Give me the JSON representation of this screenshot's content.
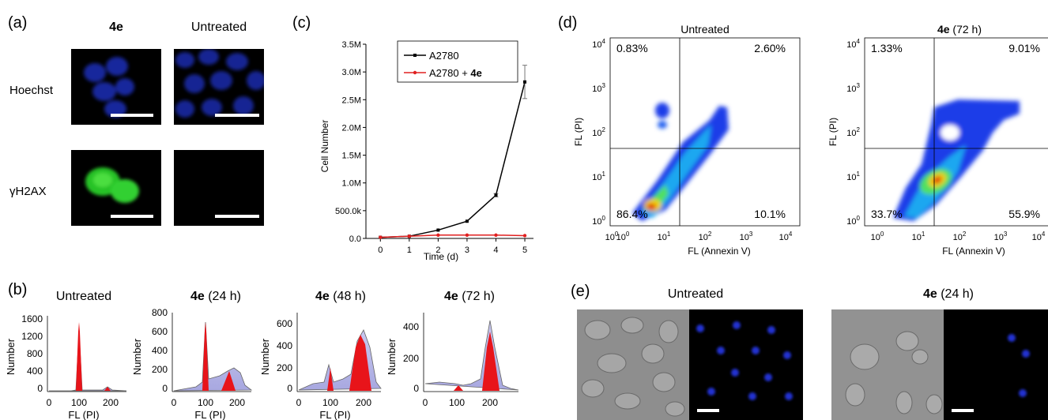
{
  "panels": {
    "a": {
      "label": "(a)",
      "col_headers": [
        "4e",
        "Untreated"
      ],
      "row_labels": [
        "Hoechst",
        "γH2AX"
      ]
    },
    "b": {
      "label": "(b)",
      "plots": [
        {
          "title_bold": "",
          "title_rest": "Untreated",
          "yticks": [
            "1600",
            "1200",
            "800",
            "400",
            "0"
          ],
          "xticks": [
            "0",
            "100",
            "200"
          ]
        },
        {
          "title_bold": "4e",
          "title_rest": " (24 h)",
          "yticks": [
            "800",
            "600",
            "400",
            "200",
            "0"
          ],
          "xticks": [
            "0",
            "100",
            "200"
          ]
        },
        {
          "title_bold": "4e",
          "title_rest": " (48 h)",
          "yticks": [
            "600",
            "400",
            "200",
            "0"
          ],
          "xticks": [
            "0",
            "100",
            "200"
          ]
        },
        {
          "title_bold": "4e",
          "title_rest": " (72 h)",
          "yticks": [
            "400",
            "200",
            "0"
          ],
          "xticks": [
            "0",
            "100",
            "200"
          ]
        }
      ],
      "ylabel": "Number",
      "xlabel": "FL (PI)"
    },
    "c": {
      "label": "(c)"
    },
    "d": {
      "label": "(d)",
      "plots": [
        {
          "title_bold": "",
          "title_rest": "Untreated",
          "q": [
            "0.83%",
            "2.60%",
            "86.4%",
            "10.1%"
          ]
        },
        {
          "title_bold": "4e",
          "title_rest": " (72 h)",
          "q": [
            "1.33%",
            "9.01%",
            "33.7%",
            "55.9%"
          ]
        }
      ],
      "xlabel": "FL (Annexin  V)",
      "ylabel": "FL (PI)"
    },
    "e": {
      "label": "(e)",
      "titles": [
        {
          "title_bold": "",
          "title_rest": "Untreated"
        },
        {
          "title_bold": "4e",
          "title_rest": " (24 h)"
        }
      ]
    }
  },
  "chart_data": [
    {
      "type": "line",
      "x": [
        0,
        1,
        2,
        3,
        4,
        5
      ],
      "xticks": [
        "0",
        "1",
        "2",
        "3",
        "4",
        "5"
      ],
      "yticks": [
        "0.0",
        "500.0k",
        "1.0M",
        "1.5M",
        "2.0M",
        "2.5M",
        "3.0M",
        "3.5M"
      ],
      "ylim": [
        0,
        3500000
      ],
      "xlim": [
        -0.5,
        5.3
      ],
      "xlabel": "Time (d)",
      "ylabel": "Cell Number",
      "legend_position": "top-right",
      "series": [
        {
          "name": "A2780",
          "name_bold": "",
          "color": "#000000",
          "values": [
            20000,
            40000,
            150000,
            310000,
            780000,
            2820000
          ],
          "errors": [
            0,
            0,
            0,
            0,
            30000,
            300000
          ]
        },
        {
          "name": "A2780 + ",
          "name_bold": "4e",
          "color": "#e02020",
          "values": [
            20000,
            40000,
            60000,
            60000,
            60000,
            50000
          ],
          "errors": [
            0,
            0,
            0,
            0,
            0,
            0
          ]
        }
      ]
    }
  ]
}
